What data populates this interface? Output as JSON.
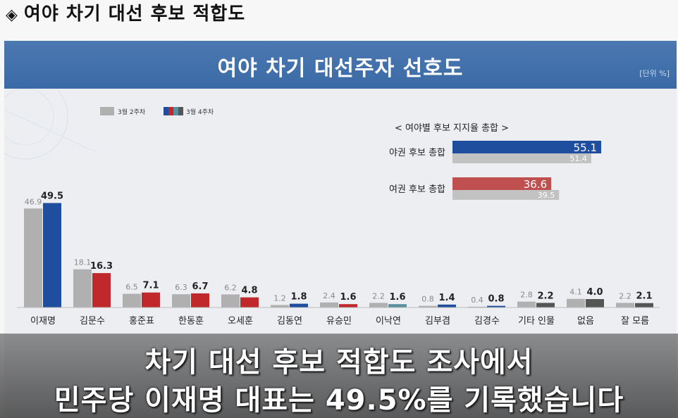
{
  "page_heading": {
    "symbol": "◈",
    "text": "여야 차기 대선 후보 적합도"
  },
  "subtitles": [
    "차기 대선 후보 적합도 조사에서",
    "민주당 이재명 대표는 49.5%를 기록했습니다"
  ],
  "chart_data": [
    {
      "type": "bar",
      "title": "여야 차기 대선주자 선호도",
      "unit": "[단위 %]",
      "legend": [
        "3월 2주차",
        "3월 4주차"
      ],
      "legend_placement": "top-left",
      "categories": [
        "이재명",
        "김문수",
        "홍준표",
        "한동훈",
        "오세훈",
        "김동연",
        "유승민",
        "이낙연",
        "김부겸",
        "김경수",
        "기타 인물",
        "없음",
        "잘 모름"
      ],
      "series": [
        {
          "name": "3월 2주차",
          "values": [
            46.9,
            18.1,
            6.5,
            6.3,
            6.2,
            1.2,
            2.4,
            2.2,
            0.8,
            0.4,
            2.8,
            4.1,
            2.2
          ]
        },
        {
          "name": "3월 4주차",
          "values": [
            49.5,
            16.3,
            7.1,
            6.7,
            4.8,
            1.8,
            1.6,
            1.6,
            1.4,
            0.8,
            2.2,
            4.0,
            2.1
          ]
        }
      ],
      "colors": {
        "previous": "#b0b0b0",
        "current": [
          "#1f4e9e",
          "#c0282c",
          "#c0282c",
          "#c0282c",
          "#c0282c",
          "#1f4e9e",
          "#c0282c",
          "#5a8fa0",
          "#1f4e9e",
          "#1f4e9e",
          "#555555",
          "#555555",
          "#555555"
        ]
      },
      "ylim": [
        0,
        55
      ],
      "grid": false
    },
    {
      "type": "bar",
      "orientation": "horizontal",
      "title": "< 여야별 후보 지지율 총합 >",
      "categories": [
        "야권 후보 총합",
        "여권 후보 총합"
      ],
      "series": [
        {
          "name": "3월 4주차",
          "values": [
            55.1,
            36.6
          ]
        },
        {
          "name": "3월 2주차",
          "values": [
            51.4,
            39.5
          ]
        }
      ],
      "colors": {
        "current": [
          "#1f4e9e",
          "#c05050"
        ],
        "previous": "#c2c2c2"
      }
    }
  ]
}
